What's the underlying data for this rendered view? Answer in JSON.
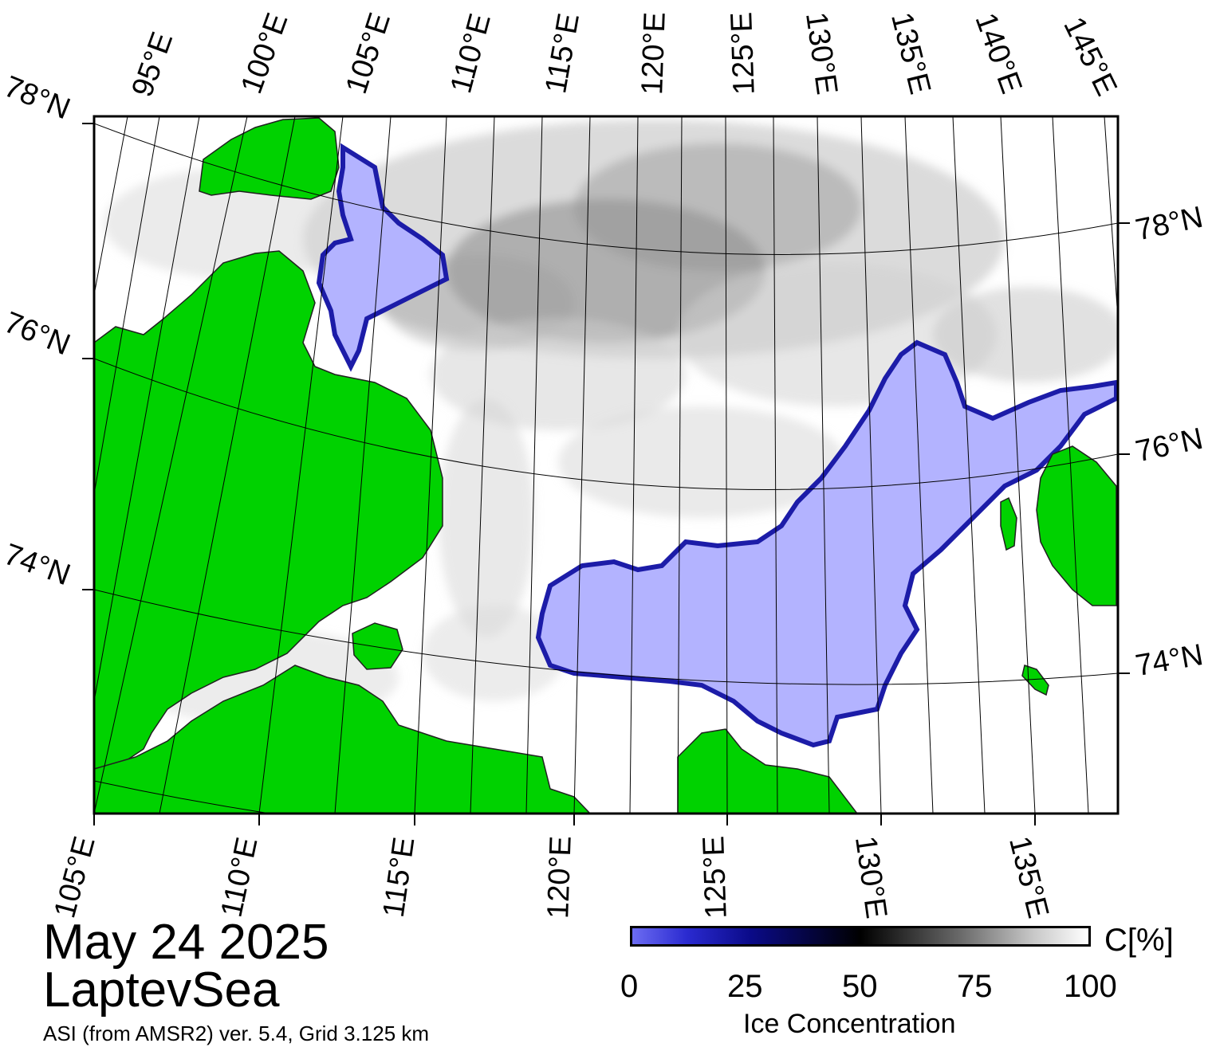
{
  "title_block": {
    "date": "May 24 2025",
    "region": "LaptevSea",
    "product": "ASI (from AMSR2) ver. 5.4,  Grid 3.125 km"
  },
  "axes": {
    "top_lon_labels": [
      "95°E",
      "100°E",
      "105°E",
      "110°E",
      "115°E",
      "120°E",
      "125°E",
      "130°E",
      "135°E",
      "140°E",
      "145°E"
    ],
    "bottom_lon_labels": [
      "105°E",
      "110°E",
      "115°E",
      "120°E",
      "125°E",
      "130°E",
      "135°E"
    ],
    "left_lat_labels": [
      "78°N",
      "76°N",
      "74°N"
    ],
    "right_lat_labels": [
      "78°N",
      "76°N",
      "74°N"
    ]
  },
  "colorbar": {
    "ticks": [
      "0",
      "25",
      "50",
      "75",
      "100"
    ],
    "unit": "C[%]",
    "title": "Ice Concentration"
  },
  "colors": {
    "land": "#00d200",
    "low_concentration": "#b3b3ff",
    "edge": "#1c1ca8",
    "ice_shade": "#8a8a8a",
    "open_water": "#ffffff"
  }
}
